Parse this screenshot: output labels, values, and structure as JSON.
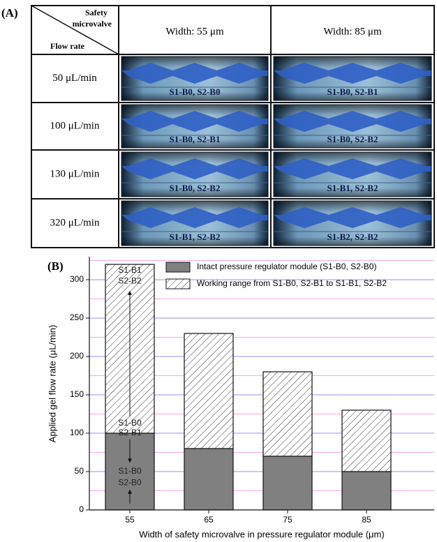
{
  "panel_a": {
    "label": "(A)",
    "table": {
      "corner_top": [
        "Safety",
        "microvalve"
      ],
      "corner_bottom": "Flow rate",
      "columns": [
        "Width: 55 μm",
        "Width: 85 μm"
      ],
      "rows": [
        {
          "label": "50 μL/min",
          "cells": [
            "S1-B0, S2-B0",
            "S1-B0, S2-B1"
          ]
        },
        {
          "label": "100 μL/min",
          "cells": [
            "S1-B0, S2-B1",
            "S1-B0, S2-B2"
          ]
        },
        {
          "label": "130 μL/min",
          "cells": [
            "S1-B0, S2-B2",
            "S1-B1, S2-B2"
          ]
        },
        {
          "label": "320 μL/min",
          "cells": [
            "S1-B1, S2-B2",
            "S1-B2, S2-B2"
          ]
        }
      ]
    }
  },
  "chart_data": {
    "type": "stacked-bar",
    "panel_label": "(B)",
    "x_label": "Width of safety  microvalve in pressure regulator module (μm)",
    "y_label": "Applied gel flow rate (μL/min)",
    "categories": [
      "55",
      "65",
      "75",
      "85"
    ],
    "series": [
      {
        "name": "Intact pressure regulator module (S1-B0, S2-B0)",
        "color": "#808080",
        "values": [
          100,
          80,
          70,
          50
        ]
      },
      {
        "name": "Working range from S1-B0, S2-B1 to S1-B1, S2-B2",
        "color": "hatch",
        "values": [
          220,
          150,
          110,
          80
        ]
      }
    ],
    "ylim": [
      0,
      330
    ],
    "yticks": [
      0,
      50,
      100,
      150,
      200,
      250,
      300
    ],
    "minor_grid": [
      25,
      75,
      125,
      175,
      225,
      275,
      325
    ],
    "grid": true,
    "grid_color": "#6f6fe8",
    "minor_grid_color": "#f08ce0",
    "legend": "top-right",
    "annotations": [
      [
        "S1-B1",
        "S2-B2"
      ],
      [
        "S1-B0",
        "S2-B1"
      ],
      [
        "S1-B0",
        "S2-B0"
      ]
    ]
  }
}
